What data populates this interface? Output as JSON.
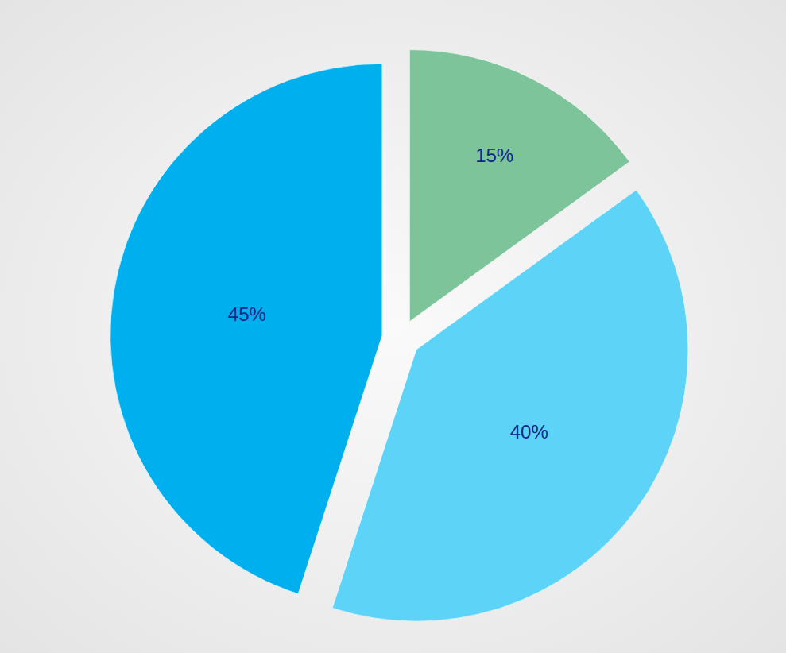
{
  "chart_data": {
    "type": "pie",
    "values": [
      15,
      40,
      45
    ],
    "value_labels": [
      "15%",
      "40%",
      "45%"
    ],
    "colors": [
      "#7dc49a",
      "#5dd3f7",
      "#00b0ee"
    ],
    "data_labels": true
  }
}
